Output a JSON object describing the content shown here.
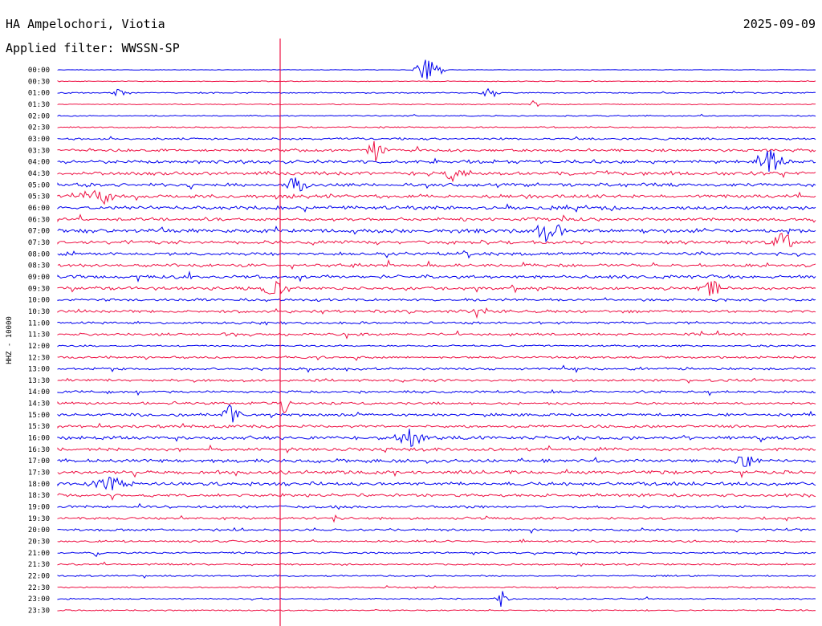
{
  "header": {
    "station": "HA Ampelochori, Viotia",
    "date": "2025-09-09",
    "filter": "Applied filter: WWSSN-SP"
  },
  "axis": {
    "ylabel": "HHZ - 10000"
  },
  "colors": {
    "trace_a": "#0000ee",
    "trace_b": "#ee1144",
    "background": "#ffffff",
    "text": "#000000"
  },
  "chart_data": {
    "type": "line",
    "title": "",
    "xlabel": "",
    "ylabel": "HHZ - 10000",
    "grid": false,
    "series_colors_alternate": [
      "blue",
      "red"
    ],
    "rows": [
      {
        "label": "00:00",
        "level": 0.3
      },
      {
        "label": "00:30",
        "level": 0.5
      },
      {
        "label": "01:00",
        "level": 0.7
      },
      {
        "label": "01:30",
        "level": 0.6
      },
      {
        "label": "02:00",
        "level": 0.7
      },
      {
        "label": "02:30",
        "level": 0.8
      },
      {
        "label": "03:00",
        "level": 1.2
      },
      {
        "label": "03:30",
        "level": 1.6
      },
      {
        "label": "04:00",
        "level": 2.0
      },
      {
        "label": "04:30",
        "level": 2.0
      },
      {
        "label": "05:00",
        "level": 2.0
      },
      {
        "label": "05:30",
        "level": 2.0
      },
      {
        "label": "06:00",
        "level": 2.0
      },
      {
        "label": "06:30",
        "level": 1.8
      },
      {
        "label": "07:00",
        "level": 2.2
      },
      {
        "label": "07:30",
        "level": 2.0
      },
      {
        "label": "08:00",
        "level": 1.8
      },
      {
        "label": "08:30",
        "level": 1.8
      },
      {
        "label": "09:00",
        "level": 2.0
      },
      {
        "label": "09:30",
        "level": 1.8
      },
      {
        "label": "10:00",
        "level": 1.5
      },
      {
        "label": "10:30",
        "level": 1.6
      },
      {
        "label": "11:00",
        "level": 1.4
      },
      {
        "label": "11:30",
        "level": 1.4
      },
      {
        "label": "12:00",
        "level": 1.0
      },
      {
        "label": "12:30",
        "level": 1.2
      },
      {
        "label": "13:00",
        "level": 1.3
      },
      {
        "label": "13:30",
        "level": 1.4
      },
      {
        "label": "14:00",
        "level": 1.5
      },
      {
        "label": "14:30",
        "level": 1.4
      },
      {
        "label": "15:00",
        "level": 1.5
      },
      {
        "label": "15:30",
        "level": 1.6
      },
      {
        "label": "16:00",
        "level": 2.0
      },
      {
        "label": "16:30",
        "level": 1.8
      },
      {
        "label": "17:00",
        "level": 2.0
      },
      {
        "label": "17:30",
        "level": 2.0
      },
      {
        "label": "18:00",
        "level": 2.0
      },
      {
        "label": "18:30",
        "level": 1.8
      },
      {
        "label": "19:00",
        "level": 1.4
      },
      {
        "label": "19:30",
        "level": 1.4
      },
      {
        "label": "20:00",
        "level": 1.3
      },
      {
        "label": "20:30",
        "level": 1.2
      },
      {
        "label": "21:00",
        "level": 1.0
      },
      {
        "label": "21:30",
        "level": 1.0
      },
      {
        "label": "22:00",
        "level": 0.9
      },
      {
        "label": "22:30",
        "level": 0.9
      },
      {
        "label": "23:00",
        "level": 0.8
      },
      {
        "label": "23:30",
        "level": 0.8
      }
    ]
  }
}
